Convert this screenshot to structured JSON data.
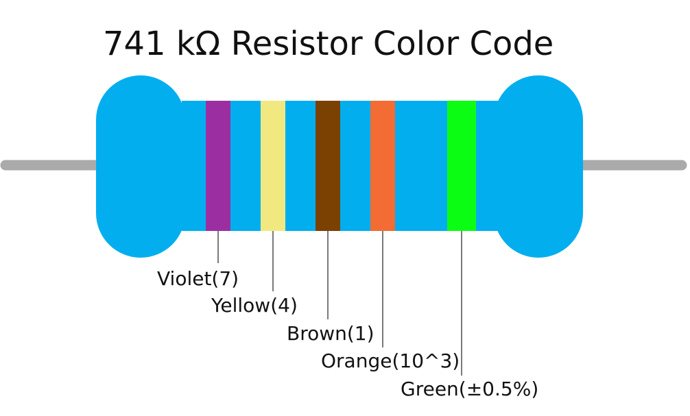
{
  "title": "741 kΩ Resistor Color Code",
  "colors": {
    "body": "#03AEEF",
    "lead": "#AAAAAA",
    "leader_line": "#222222",
    "text": "#111111",
    "background": "#FFFFFF"
  },
  "bands": [
    {
      "color_name": "Violet",
      "hex": "#9B2FA2",
      "label": "Violet(7)"
    },
    {
      "color_name": "Yellow",
      "hex": "#F1E97F",
      "label": "Yellow(4)"
    },
    {
      "color_name": "Brown",
      "hex": "#7A4102",
      "label": "Brown(1)"
    },
    {
      "color_name": "Orange",
      "hex": "#F26C34",
      "label": "Orange(10^3)"
    },
    {
      "color_name": "Green",
      "hex": "#0CFD14",
      "label": "Green(±0.5%)"
    }
  ]
}
